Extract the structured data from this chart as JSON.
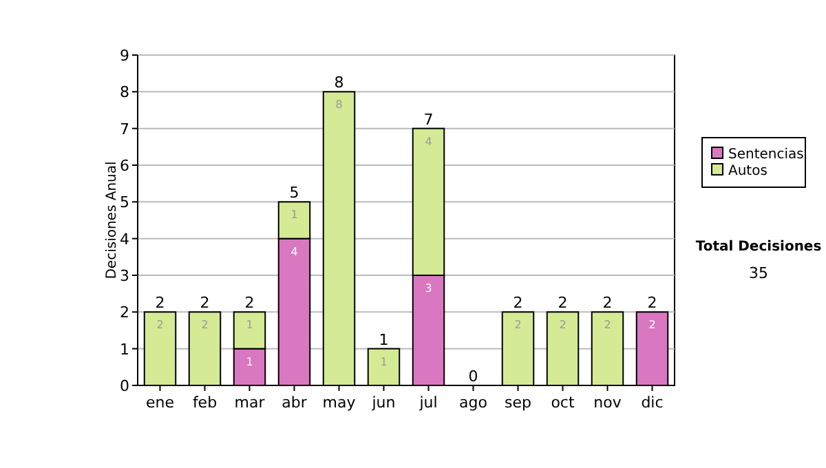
{
  "chart_data": {
    "type": "bar",
    "stacked": true,
    "ylabel": "Decisiones Anual",
    "categories": [
      "ene",
      "feb",
      "mar",
      "abr",
      "may",
      "jun",
      "jul",
      "ago",
      "sep",
      "oct",
      "nov",
      "dic"
    ],
    "series": [
      {
        "name": "Sentencias",
        "color": "#d977c0",
        "values": [
          0,
          0,
          1,
          4,
          0,
          0,
          3,
          0,
          0,
          0,
          0,
          2
        ],
        "value_labels": [
          null,
          null,
          "1",
          "4",
          null,
          null,
          "3",
          null,
          null,
          null,
          null,
          "2"
        ]
      },
      {
        "name": "Autos",
        "color": "#d4ea94",
        "values": [
          2,
          2,
          1,
          1,
          8,
          1,
          4,
          0,
          2,
          2,
          2,
          0
        ],
        "value_labels": [
          "2",
          "2",
          "1",
          "1",
          "8",
          "1",
          "4",
          null,
          "2",
          "2",
          "2",
          null
        ]
      }
    ],
    "totals": [
      "2",
      "2",
      "2",
      "5",
      "8",
      "1",
      "7",
      "0",
      "2",
      "2",
      "2",
      "2"
    ],
    "ylim": [
      0,
      9
    ],
    "yticks": [
      0,
      1,
      2,
      3,
      4,
      5,
      6,
      7,
      8,
      9
    ],
    "grid": "y",
    "legend": "right",
    "annotations": [
      "Total Decisiones",
      "35"
    ]
  }
}
